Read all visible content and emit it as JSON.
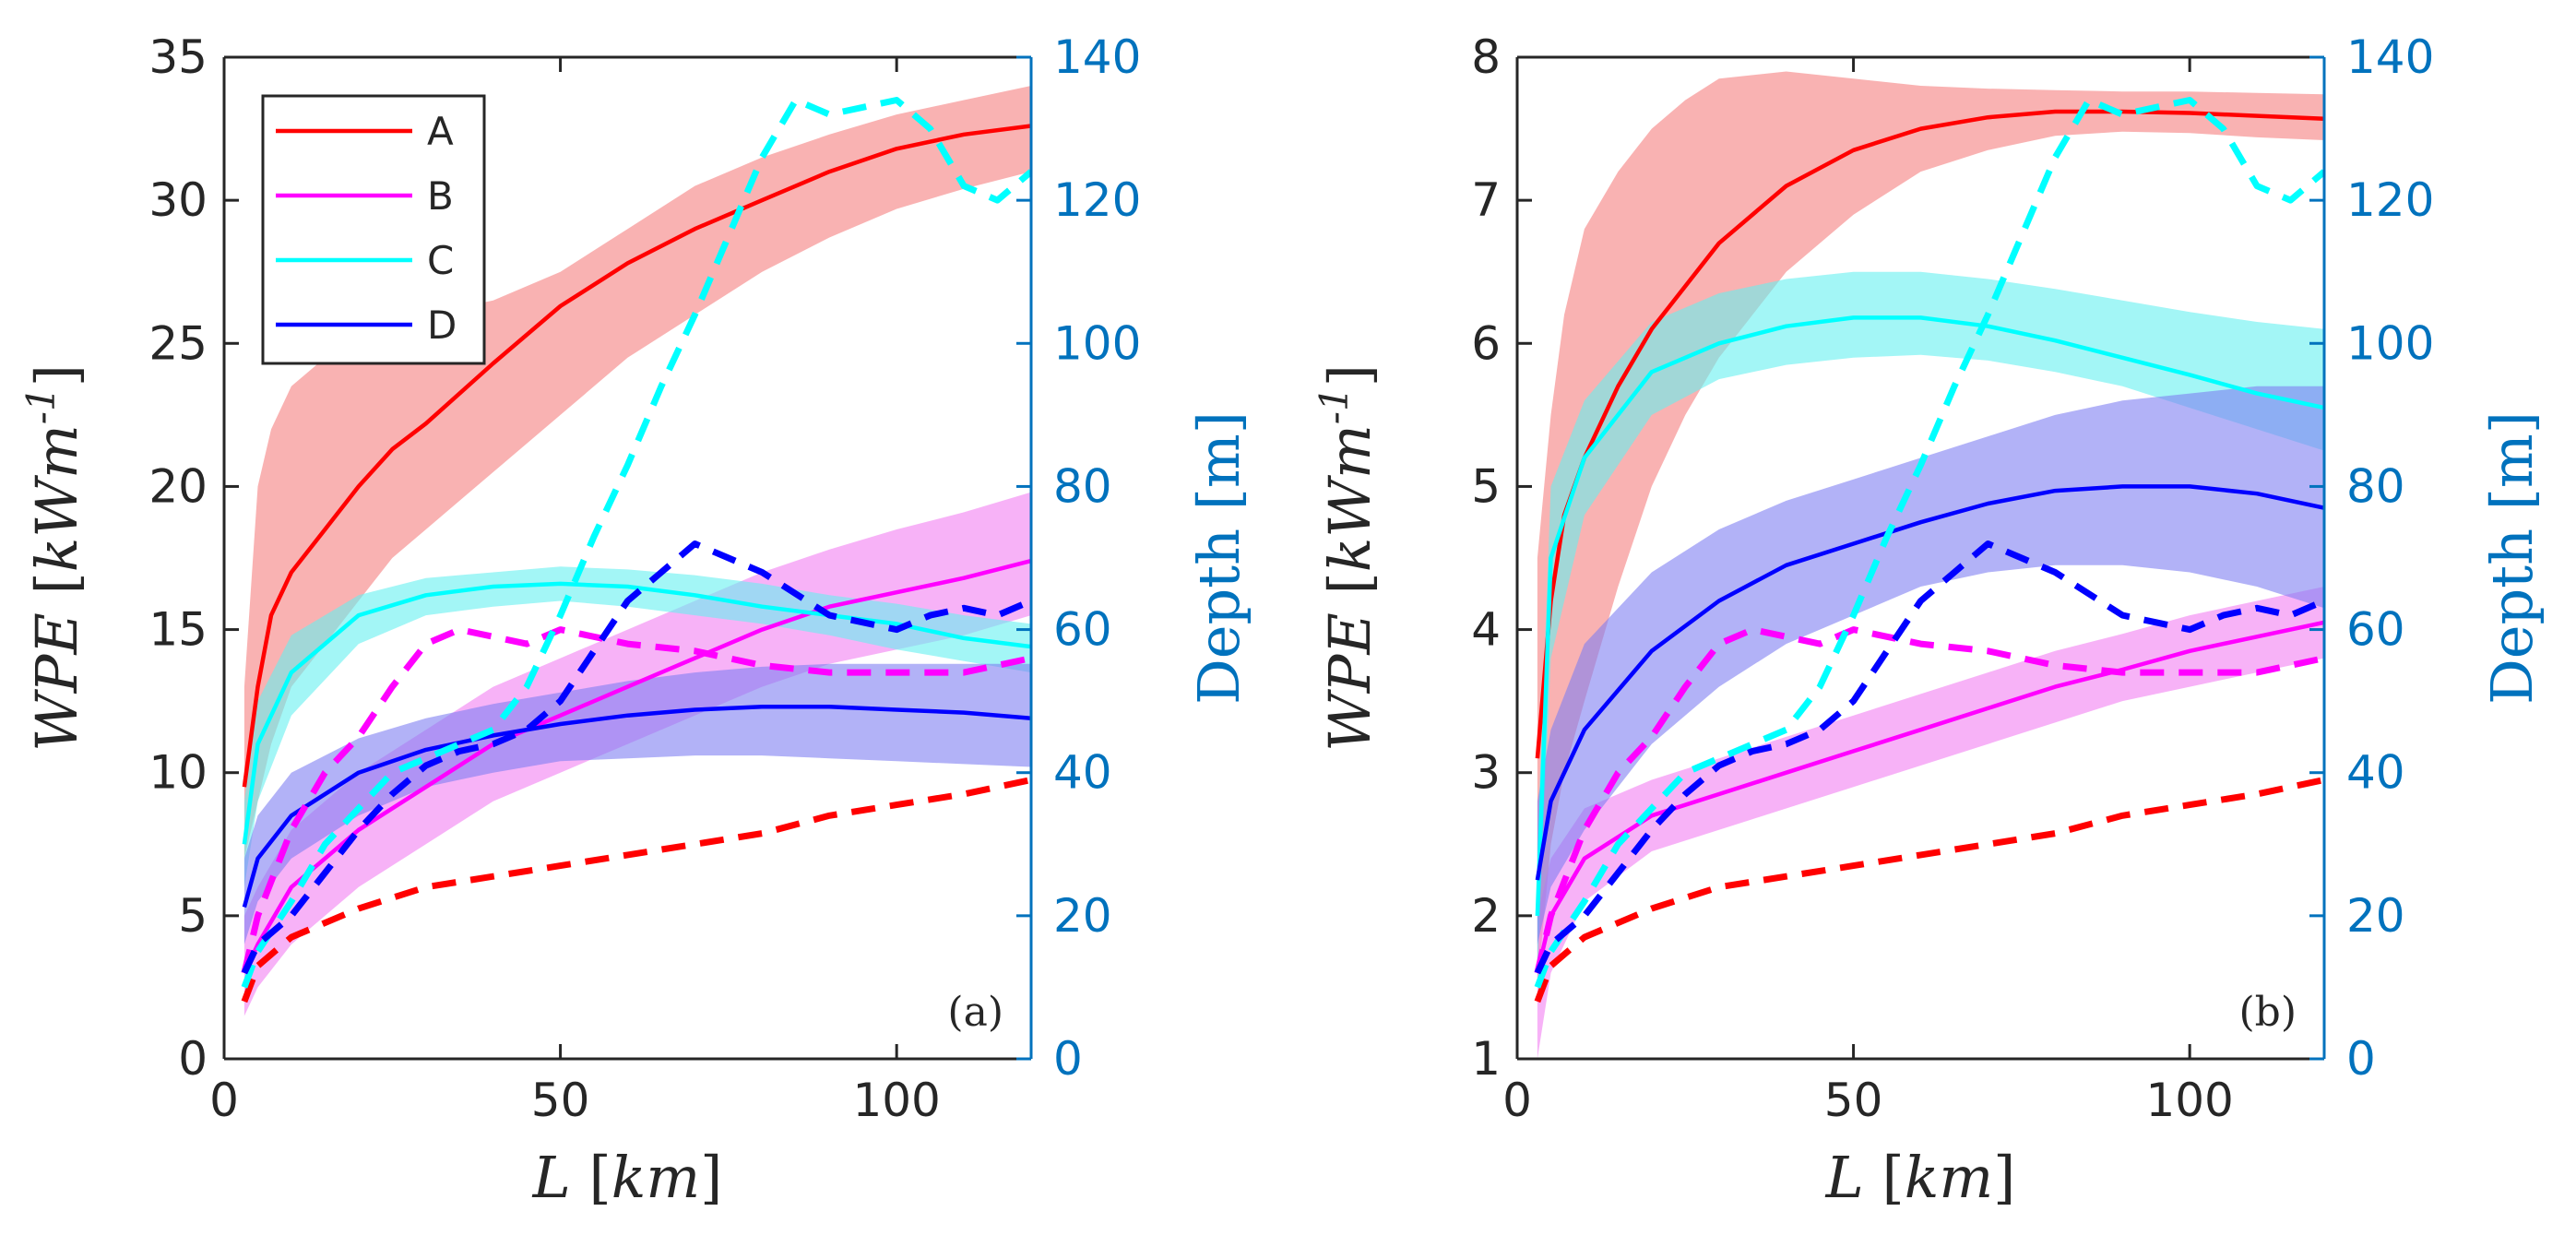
{
  "colors": {
    "A": "#ff0000",
    "B": "#ff00ff",
    "C": "#00ffff",
    "D": "#0000ff",
    "A_band": "#f57f7f",
    "B_band": "#f27ff2",
    "C_band": "#66f0f0",
    "D_band": "#7f7ff2",
    "right_axis": "#0072bd",
    "axis": "#262626"
  },
  "chart_data": [
    {
      "type": "line",
      "panel_label": "(a)",
      "xlabel": "L [km]",
      "ylabel": "WPE [kWm^-1]",
      "ylabel_right": "Depth [m]",
      "xlim": [
        0,
        120
      ],
      "ylim": [
        0,
        35
      ],
      "ylim_right": [
        0,
        140
      ],
      "xticks": [
        0,
        50,
        100
      ],
      "yticks": [
        0,
        5,
        10,
        15,
        20,
        25,
        30,
        35
      ],
      "yticks_right": [
        0,
        20,
        40,
        60,
        80,
        100,
        120,
        140
      ],
      "legend": {
        "position": "top-left",
        "entries": [
          "A",
          "B",
          "C",
          "D"
        ]
      },
      "series": [
        {
          "name": "A",
          "x": [
            3,
            5,
            7,
            10,
            15,
            20,
            25,
            30,
            40,
            50,
            60,
            70,
            80,
            90,
            100,
            110,
            120
          ],
          "values": [
            9.5,
            13,
            15.5,
            17,
            18.5,
            20,
            21.3,
            22.2,
            24.3,
            26.3,
            27.8,
            29,
            30,
            31,
            31.8,
            32.3,
            32.6
          ],
          "lower": [
            7,
            9,
            11,
            13,
            14.5,
            16,
            17.5,
            18.5,
            20.5,
            22.5,
            24.5,
            26,
            27.5,
            28.7,
            29.7,
            30.4,
            31
          ],
          "upper": [
            13,
            20,
            22,
            23.5,
            24.5,
            25,
            25.5,
            26,
            26.5,
            27.5,
            29,
            30.5,
            31.5,
            32.3,
            33,
            33.5,
            34
          ]
        },
        {
          "name": "B",
          "x": [
            3,
            5,
            10,
            20,
            30,
            40,
            50,
            60,
            70,
            80,
            90,
            100,
            110,
            120
          ],
          "values": [
            3,
            4,
            6,
            8,
            9.5,
            11,
            12,
            13,
            14,
            15,
            15.8,
            16.3,
            16.8,
            17.4
          ],
          "lower": [
            1.5,
            2.5,
            4,
            6,
            7.5,
            9,
            10,
            11,
            12,
            13,
            13.8,
            14.3,
            14.8,
            15.5
          ],
          "upper": [
            5,
            6,
            8,
            10,
            11.5,
            13,
            14,
            15,
            16,
            17,
            17.8,
            18.5,
            19.1,
            19.8
          ]
        },
        {
          "name": "C",
          "x": [
            3,
            5,
            10,
            20,
            30,
            40,
            50,
            60,
            70,
            80,
            90,
            100,
            110,
            120
          ],
          "values": [
            7.5,
            11,
            13.5,
            15.5,
            16.2,
            16.5,
            16.6,
            16.5,
            16.2,
            15.8,
            15.5,
            15.2,
            14.7,
            14.4
          ],
          "lower": [
            6,
            9,
            12,
            14.5,
            15.5,
            15.8,
            16,
            15.8,
            15.5,
            15.2,
            14.8,
            14.3,
            13.9,
            13.5
          ],
          "upper": [
            9,
            12.5,
            14.8,
            16.2,
            16.8,
            17,
            17.2,
            17.1,
            16.9,
            16.6,
            16.2,
            15.9,
            15.5,
            15.2
          ]
        },
        {
          "name": "D",
          "x": [
            3,
            5,
            10,
            20,
            30,
            40,
            50,
            60,
            70,
            80,
            90,
            100,
            110,
            120
          ],
          "values": [
            5.3,
            7,
            8.5,
            10,
            10.8,
            11.3,
            11.7,
            12,
            12.2,
            12.3,
            12.3,
            12.2,
            12.1,
            11.9
          ],
          "lower": [
            4,
            5.5,
            7,
            8.5,
            9.5,
            10,
            10.4,
            10.5,
            10.6,
            10.6,
            10.5,
            10.4,
            10.3,
            10.2
          ],
          "upper": [
            7,
            8.5,
            10,
            11.2,
            11.9,
            12.4,
            12.8,
            13.2,
            13.5,
            13.7,
            13.8,
            13.8,
            13.8,
            13.8
          ]
        }
      ],
      "depth_series": [
        {
          "name": "A",
          "x": [
            3,
            5,
            10,
            20,
            30,
            40,
            50,
            60,
            70,
            80,
            90,
            100,
            110,
            120
          ],
          "values": [
            8,
            13,
            17,
            21,
            24,
            25.5,
            27,
            28.5,
            30,
            31.5,
            34,
            35.5,
            37,
            39
          ]
        },
        {
          "name": "B",
          "x": [
            3,
            5,
            10,
            15,
            20,
            25,
            30,
            35,
            40,
            45,
            50,
            60,
            70,
            80,
            90,
            100,
            110,
            120
          ],
          "values": [
            12,
            20,
            32,
            40,
            45,
            52,
            58,
            60,
            59,
            58,
            60,
            58,
            57,
            55,
            54,
            54,
            54,
            56
          ]
        },
        {
          "name": "C",
          "x": [
            3,
            5,
            10,
            15,
            20,
            25,
            30,
            35,
            40,
            45,
            50,
            55,
            60,
            65,
            70,
            75,
            80,
            85,
            90,
            95,
            100,
            105,
            110,
            115,
            120
          ],
          "values": [
            10,
            15,
            22,
            30,
            35,
            40,
            42,
            44,
            46,
            52,
            62,
            73,
            83,
            94,
            104,
            115,
            126,
            134,
            132,
            133,
            134,
            130,
            122,
            120,
            124
          ]
        },
        {
          "name": "D",
          "x": [
            3,
            5,
            10,
            15,
            20,
            25,
            30,
            35,
            40,
            45,
            50,
            55,
            60,
            65,
            70,
            75,
            80,
            85,
            90,
            95,
            100,
            105,
            110,
            115,
            120
          ],
          "values": [
            12,
            16,
            20,
            26,
            32,
            37,
            41,
            43,
            44,
            46,
            50,
            57,
            64,
            68,
            72,
            70,
            68,
            65,
            62,
            61,
            60,
            62,
            63,
            62,
            64
          ]
        }
      ]
    },
    {
      "type": "line",
      "panel_label": "(b)",
      "xlabel": "L [km]",
      "ylabel": "WPE [kWm^-1]",
      "ylabel_right": "Depth [m]",
      "xlim": [
        0,
        120
      ],
      "ylim": [
        1,
        8
      ],
      "ylim_right": [
        0,
        140
      ],
      "xticks": [
        0,
        50,
        100
      ],
      "yticks": [
        1,
        2,
        3,
        4,
        5,
        6,
        7,
        8
      ],
      "yticks_right": [
        0,
        20,
        40,
        60,
        80,
        100,
        120,
        140
      ],
      "series": [
        {
          "name": "A",
          "x": [
            3,
            5,
            7,
            10,
            15,
            20,
            25,
            30,
            40,
            50,
            60,
            70,
            80,
            90,
            100,
            110,
            120
          ],
          "values": [
            3.1,
            4.2,
            4.8,
            5.2,
            5.7,
            6.1,
            6.4,
            6.7,
            7.1,
            7.35,
            7.5,
            7.58,
            7.62,
            7.62,
            7.61,
            7.59,
            7.57
          ],
          "lower": [
            1.5,
            2.5,
            3,
            3.5,
            4.3,
            5,
            5.5,
            5.9,
            6.5,
            6.9,
            7.2,
            7.35,
            7.45,
            7.48,
            7.47,
            7.44,
            7.42
          ],
          "upper": [
            4.5,
            5.5,
            6.2,
            6.8,
            7.2,
            7.5,
            7.7,
            7.85,
            7.9,
            7.85,
            7.8,
            7.78,
            7.77,
            7.76,
            7.76,
            7.75,
            7.74
          ]
        },
        {
          "name": "B",
          "x": [
            3,
            5,
            10,
            20,
            30,
            40,
            50,
            60,
            70,
            80,
            90,
            100,
            110,
            120
          ],
          "values": [
            1.6,
            2.0,
            2.4,
            2.7,
            2.85,
            3.0,
            3.15,
            3.3,
            3.45,
            3.6,
            3.72,
            3.85,
            3.95,
            4.05
          ],
          "lower": [
            1.0,
            1.6,
            2.1,
            2.45,
            2.6,
            2.75,
            2.9,
            3.05,
            3.2,
            3.35,
            3.5,
            3.6,
            3.7,
            3.8
          ],
          "upper": [
            2.0,
            2.4,
            2.75,
            2.95,
            3.1,
            3.25,
            3.4,
            3.55,
            3.7,
            3.85,
            3.97,
            4.1,
            4.2,
            4.3
          ]
        },
        {
          "name": "C",
          "x": [
            3,
            5,
            10,
            20,
            30,
            40,
            50,
            60,
            70,
            80,
            90,
            100,
            110,
            120
          ],
          "values": [
            2.0,
            4.5,
            5.2,
            5.8,
            6.0,
            6.12,
            6.18,
            6.18,
            6.12,
            6.02,
            5.9,
            5.78,
            5.65,
            5.55
          ],
          "lower": [
            1.6,
            3.8,
            4.8,
            5.5,
            5.75,
            5.85,
            5.9,
            5.92,
            5.88,
            5.8,
            5.7,
            5.55,
            5.4,
            5.25
          ],
          "upper": [
            2.5,
            5.0,
            5.6,
            6.15,
            6.35,
            6.45,
            6.5,
            6.5,
            6.45,
            6.38,
            6.3,
            6.22,
            6.15,
            6.1
          ]
        },
        {
          "name": "D",
          "x": [
            3,
            5,
            10,
            20,
            30,
            40,
            50,
            60,
            70,
            80,
            90,
            100,
            110,
            120
          ],
          "values": [
            2.25,
            2.8,
            3.3,
            3.85,
            4.2,
            4.45,
            4.6,
            4.75,
            4.88,
            4.97,
            5.0,
            5.0,
            4.95,
            4.85
          ],
          "lower": [
            1.8,
            2.2,
            2.6,
            3.2,
            3.6,
            3.9,
            4.1,
            4.3,
            4.4,
            4.45,
            4.45,
            4.4,
            4.3,
            4.15
          ],
          "upper": [
            2.8,
            3.3,
            3.9,
            4.4,
            4.7,
            4.9,
            5.05,
            5.2,
            5.35,
            5.5,
            5.6,
            5.65,
            5.7,
            5.7
          ]
        }
      ],
      "depth_series": [
        {
          "name": "A",
          "x": [
            3,
            5,
            10,
            20,
            30,
            40,
            50,
            60,
            70,
            80,
            90,
            100,
            110,
            120
          ],
          "values": [
            8,
            13,
            17,
            21,
            24,
            25.5,
            27,
            28.5,
            30,
            31.5,
            34,
            35.5,
            37,
            39
          ]
        },
        {
          "name": "B",
          "x": [
            3,
            5,
            10,
            15,
            20,
            25,
            30,
            35,
            40,
            45,
            50,
            60,
            70,
            80,
            90,
            100,
            110,
            120
          ],
          "values": [
            12,
            20,
            32,
            40,
            45,
            52,
            58,
            60,
            59,
            58,
            60,
            58,
            57,
            55,
            54,
            54,
            54,
            56
          ]
        },
        {
          "name": "C",
          "x": [
            3,
            5,
            10,
            15,
            20,
            25,
            30,
            35,
            40,
            45,
            50,
            55,
            60,
            65,
            70,
            75,
            80,
            85,
            90,
            95,
            100,
            105,
            110,
            115,
            120
          ],
          "values": [
            10,
            15,
            22,
            30,
            35,
            40,
            42,
            44,
            46,
            52,
            62,
            73,
            83,
            94,
            104,
            115,
            126,
            134,
            132,
            133,
            134,
            130,
            122,
            120,
            124
          ]
        },
        {
          "name": "D",
          "x": [
            3,
            5,
            10,
            15,
            20,
            25,
            30,
            35,
            40,
            45,
            50,
            55,
            60,
            65,
            70,
            75,
            80,
            85,
            90,
            95,
            100,
            105,
            110,
            115,
            120
          ],
          "values": [
            12,
            16,
            20,
            26,
            32,
            37,
            41,
            43,
            44,
            46,
            50,
            57,
            64,
            68,
            72,
            70,
            68,
            65,
            62,
            61,
            60,
            62,
            63,
            62,
            64
          ]
        }
      ]
    }
  ]
}
